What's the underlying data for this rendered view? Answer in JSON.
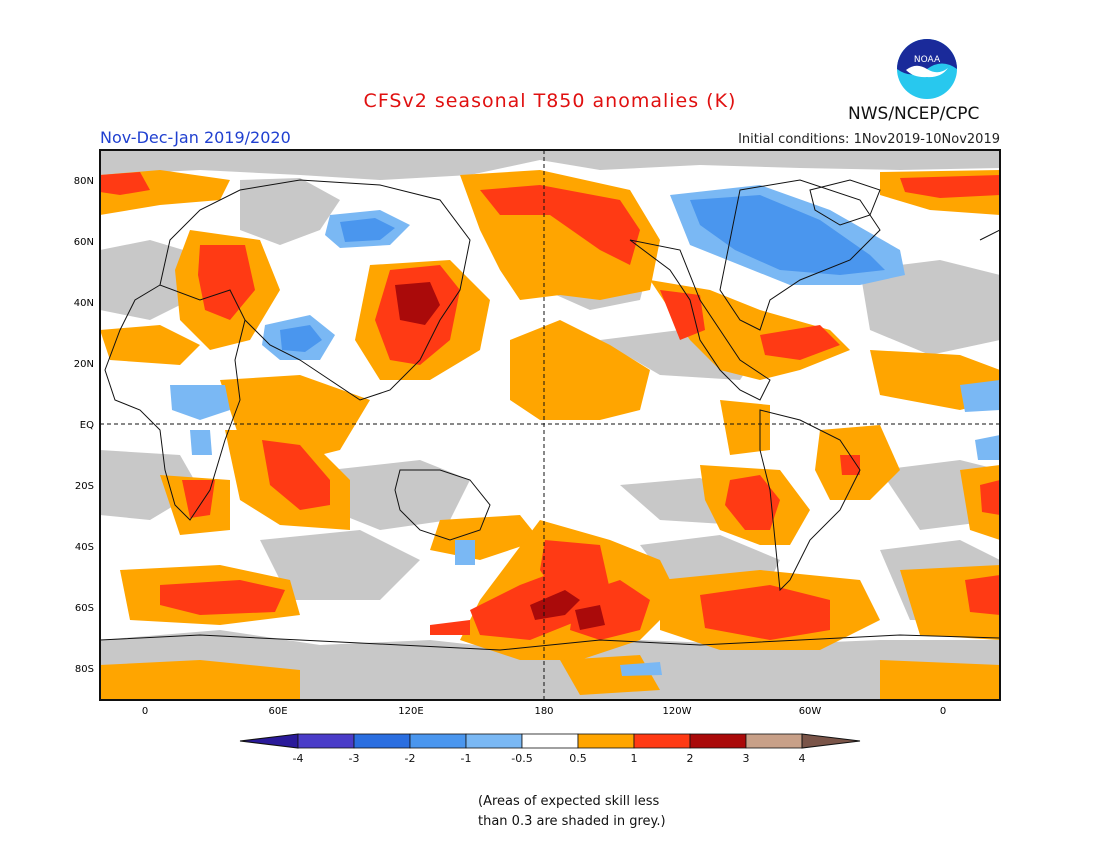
{
  "header": {
    "title": "CFSv2 seasonal T850 anomalies (K)",
    "subtitle": "Nov-Dec-Jan 2019/2020",
    "initial_conditions": "Initial conditions: 1Nov2019-10Nov2019",
    "agency": "NWS/NCEP/CPC",
    "logo_text": "NOAA"
  },
  "map": {
    "lat_labels": [
      "80N",
      "60N",
      "40N",
      "20N",
      "EQ",
      "20S",
      "40S",
      "60S",
      "80S"
    ],
    "lon_labels": [
      "0",
      "60E",
      "120E",
      "180",
      "120W",
      "60W",
      "0"
    ]
  },
  "legend": {
    "bins": [
      {
        "label": "-4",
        "color": "#2a1a9a"
      },
      {
        "label": "-3",
        "color": "#4a3cc8"
      },
      {
        "label": "-2",
        "color": "#2a6ee0"
      },
      {
        "label": "-1",
        "color": "#4a96ee"
      },
      {
        "label": "-0.5",
        "color": "#7ab8f4"
      },
      {
        "label": "0.5",
        "color": "#ffffff"
      },
      {
        "label": "1",
        "color": "#ffa500"
      },
      {
        "label": "2",
        "color": "#ff3a14"
      },
      {
        "label": "3",
        "color": "#aa0a0a"
      },
      {
        "label": "4",
        "color": "#c8a088"
      },
      {
        "label": "",
        "color": "#7a5448"
      }
    ]
  },
  "note": {
    "line1": "(Areas of expected skill less",
    "line2": "than 0.3 are shaded in grey.)"
  },
  "colors": {
    "grey": "#c8c8c8",
    "orange": "#ffa500",
    "red": "#ff3a14",
    "darkred": "#aa0a0a",
    "blue": "#4a96ee",
    "lightblue": "#7ab8f4"
  }
}
